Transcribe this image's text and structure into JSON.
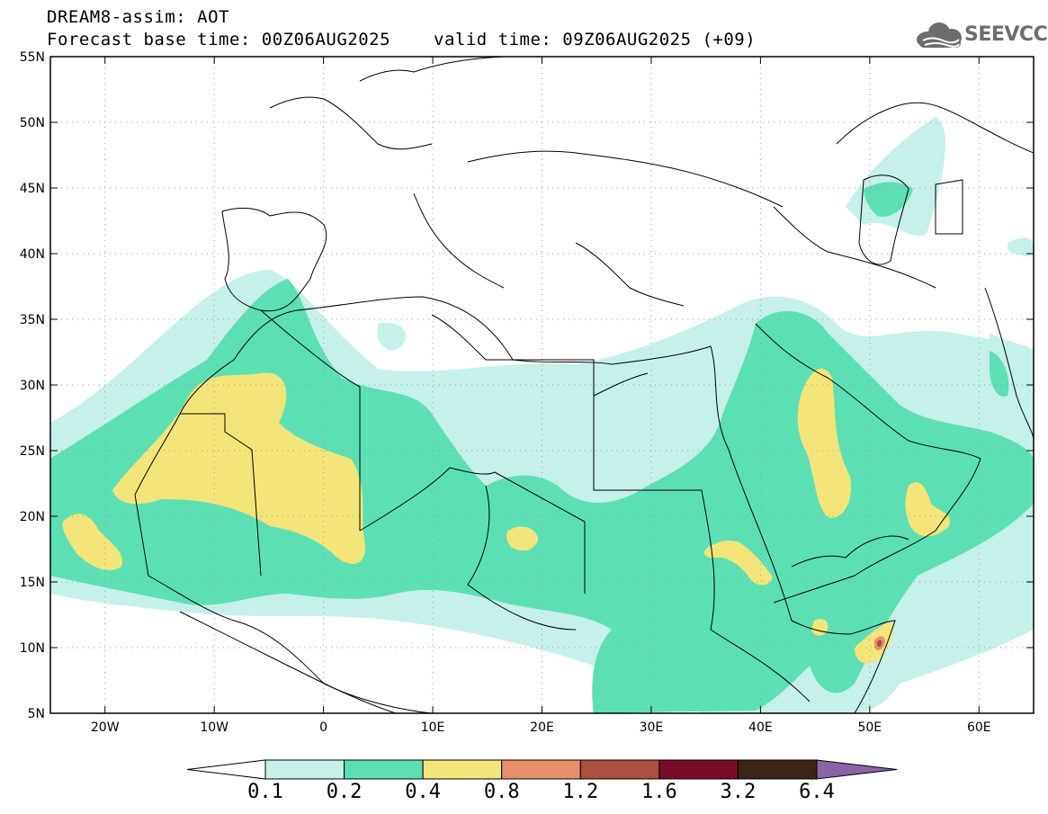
{
  "header": {
    "title": "DREAM8-assim: AOT",
    "base_time": "Forecast base time: 00Z06AUG2025",
    "valid_time": "valid time: 09Z06AUG2025 (+09)"
  },
  "logo": {
    "text": "SEEVCCC",
    "icon": "cloud-icon"
  },
  "map": {
    "lon_range": [
      -25,
      65
    ],
    "lat_range": [
      5,
      55
    ],
    "lon_ticks": [
      {
        "value": -20,
        "label": "20W"
      },
      {
        "value": -10,
        "label": "10W"
      },
      {
        "value": 0,
        "label": "0"
      },
      {
        "value": 10,
        "label": "10E"
      },
      {
        "value": 20,
        "label": "20E"
      },
      {
        "value": 30,
        "label": "30E"
      },
      {
        "value": 40,
        "label": "40E"
      },
      {
        "value": 50,
        "label": "50E"
      },
      {
        "value": 60,
        "label": "60E"
      }
    ],
    "lat_ticks": [
      {
        "value": 55,
        "label": "55N"
      },
      {
        "value": 50,
        "label": "50N"
      },
      {
        "value": 45,
        "label": "45N"
      },
      {
        "value": 40,
        "label": "40N"
      },
      {
        "value": 35,
        "label": "35N"
      },
      {
        "value": 30,
        "label": "30N"
      },
      {
        "value": 25,
        "label": "25N"
      },
      {
        "value": 20,
        "label": "20N"
      },
      {
        "value": 15,
        "label": "15N"
      },
      {
        "value": 10,
        "label": "10N"
      },
      {
        "value": 5,
        "label": "5N"
      }
    ],
    "colors": {
      "light_aqua": "#c6f0ea",
      "aqua": "#5ddfb4",
      "yellow": "#f4e57a",
      "salmon": "#e8906a",
      "brown_red": "#a9503e",
      "dark_red": "#7a0c2a",
      "dark_brown": "#3b2516",
      "purple": "#8a63a8"
    }
  },
  "colorbar": {
    "labels": [
      "0.1",
      "0.2",
      "0.4",
      "0.8",
      "1.2",
      "1.6",
      "3.2",
      "6.4"
    ],
    "colors": [
      "#c6f0ea",
      "#5ddfb4",
      "#f4e57a",
      "#e8906a",
      "#a9503e",
      "#7a0c2a",
      "#3b2516"
    ],
    "over_color": "#8a63a8",
    "under_color": "#ffffff"
  }
}
